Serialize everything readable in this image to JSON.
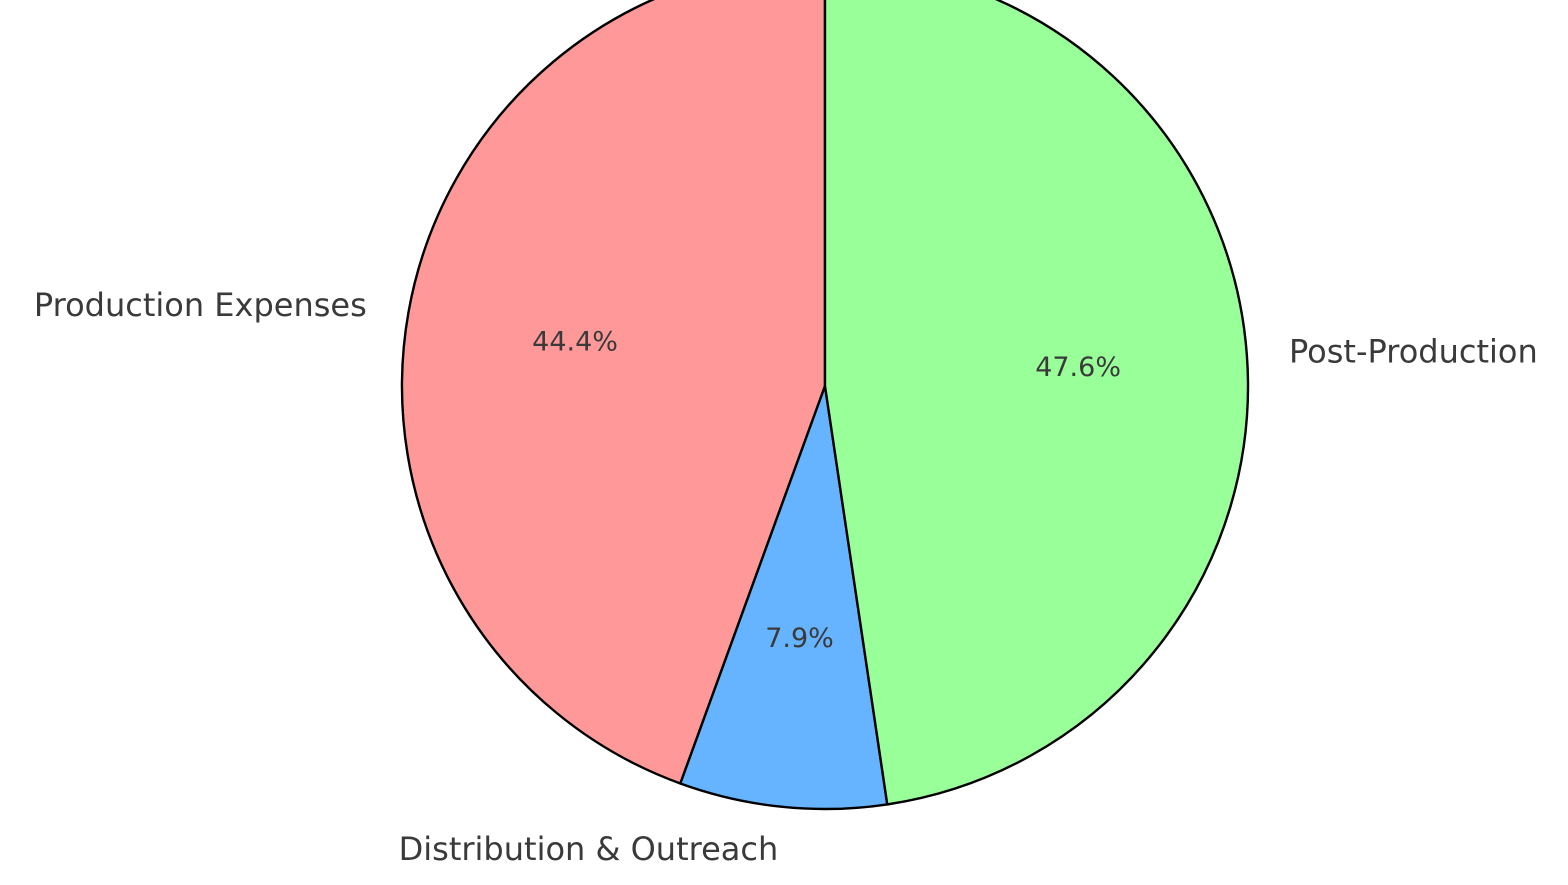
{
  "chart_data": {
    "type": "pie",
    "title": "",
    "slices": [
      {
        "label": "Production Expenses",
        "value": 44.4,
        "display": "44.4%",
        "color": "#ff9999"
      },
      {
        "label": "Distribution & Outreach",
        "value": 7.9,
        "display": "7.9%",
        "color": "#66b3ff"
      },
      {
        "label": "Post-Production",
        "value": 47.6,
        "display": "47.6%",
        "color": "#99ff99"
      }
    ],
    "start_angle_deg": 90,
    "direction": "counterclockwise",
    "edge_color": "#000000",
    "legend": "none"
  }
}
